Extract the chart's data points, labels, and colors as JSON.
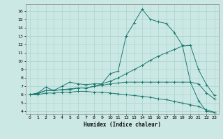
{
  "xlabel": "Humidex (Indice chaleur)",
  "bg_color": "#cce8e5",
  "grid_color": "#aad4cf",
  "line_color": "#1a7a6e",
  "xlim": [
    -0.5,
    23.5
  ],
  "ylim": [
    3.7,
    16.8
  ],
  "xticks": [
    0,
    1,
    2,
    3,
    4,
    5,
    6,
    7,
    8,
    9,
    10,
    11,
    12,
    13,
    14,
    15,
    16,
    17,
    18,
    19,
    20,
    21,
    22,
    23
  ],
  "yticks": [
    4,
    5,
    6,
    7,
    8,
    9,
    10,
    11,
    12,
    13,
    14,
    15,
    16
  ],
  "line1_x": [
    0,
    1,
    2,
    3,
    4,
    5,
    6,
    7,
    8,
    9,
    10,
    11,
    12,
    13,
    14,
    15,
    16,
    17,
    18,
    19,
    20,
    21,
    22,
    23
  ],
  "line1_y": [
    6.0,
    6.2,
    6.9,
    6.5,
    7.0,
    7.5,
    7.3,
    7.2,
    7.3,
    7.3,
    8.5,
    8.8,
    13.0,
    14.6,
    16.2,
    15.0,
    14.7,
    14.5,
    13.4,
    11.9,
    7.5,
    5.3,
    4.0,
    3.9
  ],
  "line2_x": [
    0,
    1,
    2,
    3,
    4,
    5,
    6,
    7,
    8,
    9,
    10,
    11,
    12,
    13,
    14,
    15,
    16,
    17,
    18,
    19,
    20,
    21,
    22,
    23
  ],
  "line2_y": [
    6.0,
    6.2,
    6.5,
    6.5,
    6.6,
    6.7,
    6.8,
    6.8,
    7.0,
    7.3,
    7.6,
    8.0,
    8.5,
    9.0,
    9.5,
    10.1,
    10.6,
    11.0,
    11.4,
    11.8,
    11.9,
    9.0,
    7.2,
    5.9
  ],
  "line3_x": [
    0,
    1,
    2,
    3,
    4,
    5,
    6,
    7,
    8,
    9,
    10,
    11,
    12,
    13,
    14,
    15,
    16,
    17,
    18,
    19,
    20,
    21,
    22,
    23
  ],
  "line3_y": [
    6.0,
    6.1,
    6.5,
    6.5,
    6.6,
    6.6,
    6.8,
    6.8,
    7.0,
    7.1,
    7.3,
    7.4,
    7.5,
    7.5,
    7.5,
    7.5,
    7.5,
    7.5,
    7.5,
    7.5,
    7.5,
    7.3,
    6.2,
    5.5
  ],
  "line4_x": [
    0,
    1,
    2,
    3,
    4,
    5,
    6,
    7,
    8,
    9,
    10,
    11,
    12,
    13,
    14,
    15,
    16,
    17,
    18,
    19,
    20,
    21,
    22,
    23
  ],
  "line4_y": [
    6.0,
    6.0,
    6.2,
    6.2,
    6.3,
    6.3,
    6.4,
    6.4,
    6.3,
    6.3,
    6.2,
    6.1,
    6.0,
    5.9,
    5.8,
    5.7,
    5.5,
    5.4,
    5.2,
    5.0,
    4.8,
    4.6,
    4.2,
    3.9
  ]
}
